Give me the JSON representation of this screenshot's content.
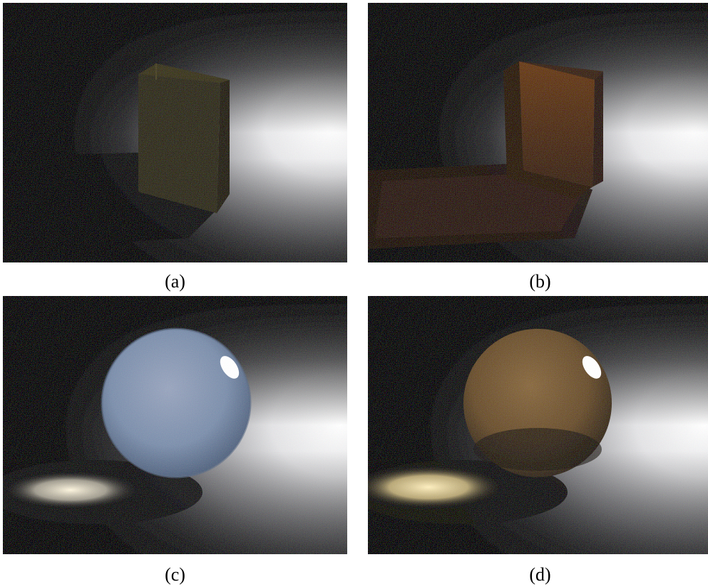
{
  "panels": [
    {
      "id": "a",
      "caption": "(a)"
    },
    {
      "id": "b",
      "caption": "(b)"
    },
    {
      "id": "c",
      "caption": "(c)"
    },
    {
      "id": "d",
      "caption": "(d)"
    }
  ]
}
